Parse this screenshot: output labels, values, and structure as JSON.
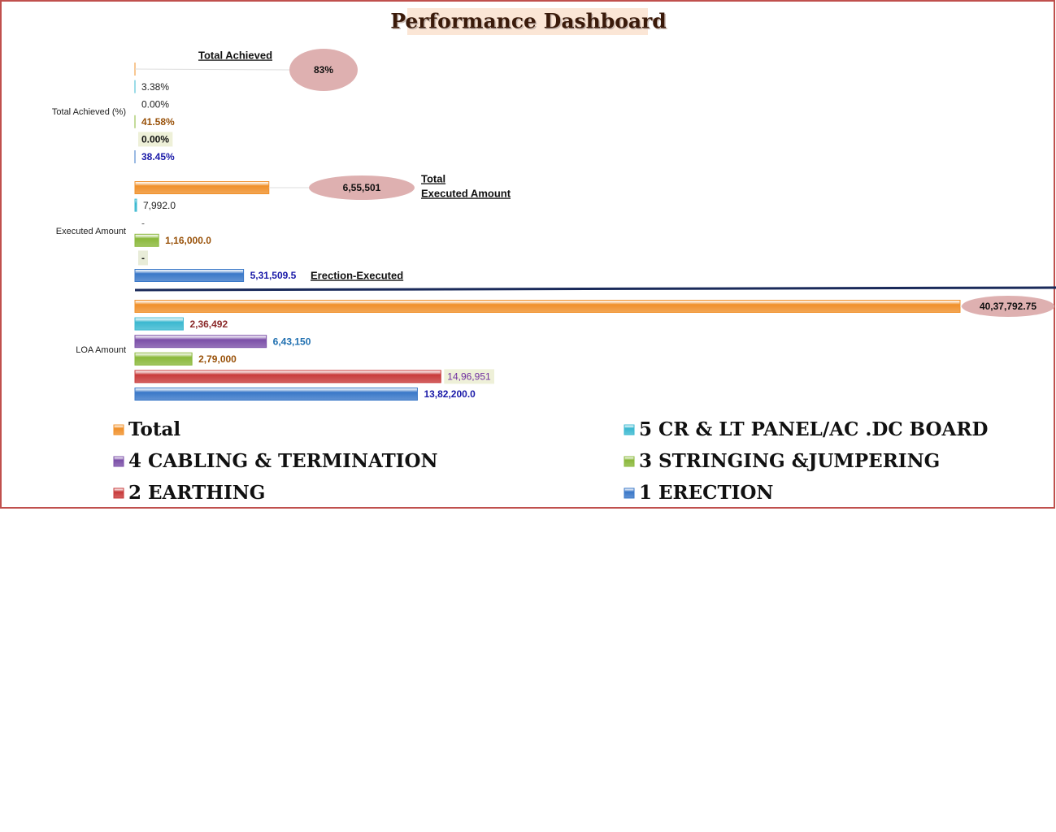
{
  "chart_data": {
    "type": "bar",
    "orientation": "horizontal",
    "title": "Performance Dashboard",
    "categories": [
      "Total Achieved (%)",
      "Executed Amount",
      "LOA Amount"
    ],
    "series": [
      {
        "name": "1 ERECTION",
        "color": "#3a78c8",
        "values": [
          38.45,
          531509.5,
          1382200.0
        ],
        "value_labels": [
          "38.45%",
          "5,31,509.5",
          "13,82,200.0"
        ]
      },
      {
        "name": "2 EARTHING",
        "color": "#c83a3a",
        "values": [
          0.0,
          0,
          1496951
        ],
        "value_labels": [
          "0.00%",
          "-",
          "14,96,951"
        ]
      },
      {
        "name": "3 STRINGING &JUMPERING",
        "color": "#8ab83a",
        "values": [
          41.58,
          116000.0,
          279000
        ],
        "value_labels": [
          "41.58%",
          "1,16,000.0",
          "2,79,000"
        ]
      },
      {
        "name": "4 CABLING & TERMINATION",
        "color": "#7b4fa8",
        "values": [
          0.0,
          0,
          643150
        ],
        "value_labels": [
          "0.00%",
          "-",
          "6,43,150"
        ]
      },
      {
        "name": "5 CR & LT PANEL/AC .DC BOARD",
        "color": "#3ab8d0",
        "values": [
          3.38,
          7992.0,
          236492
        ],
        "value_labels": [
          "3.38%",
          "7,992.0",
          "2,36,492"
        ]
      },
      {
        "name": "Total",
        "color": "#f0902a",
        "values": [
          83,
          655501,
          4037792.75
        ],
        "value_labels": [
          "83%",
          "6,55,501",
          "40,37,792.75"
        ]
      }
    ],
    "annotations": [
      "Total Achieved",
      "Total",
      "Executed Amount",
      "Erection-Executed"
    ],
    "legend": "bottom"
  }
}
